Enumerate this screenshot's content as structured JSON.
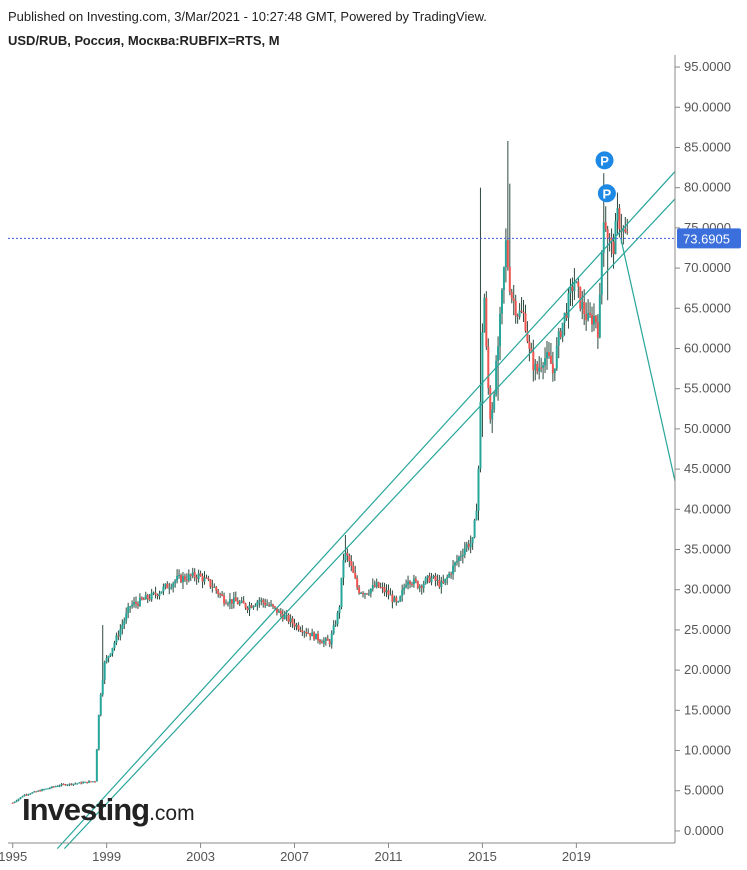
{
  "header": {
    "published": "Published on Investing.com, 3/Mar/2021 - 10:27:48 GMT, Powered by TradingView.",
    "title": "USD/RUB, Россия, Москва:RUBFIX=RTS, M"
  },
  "logo": {
    "brand": "Investing",
    "suffix": ".com"
  },
  "colors": {
    "up": "#26a69a",
    "down": "#ef5350",
    "wick": "#2d4a3e",
    "trendline": "#26a69a",
    "price_line": "#3b5bdb",
    "price_tag": "#3b6fdc",
    "marker": "#1e88e5",
    "axis": "#888888"
  },
  "chart_data": {
    "type": "candlestick",
    "title": "USD/RUB, Россия, Москва:RUBFIX=RTS, M",
    "interval": "Monthly",
    "xlabel": "",
    "ylabel": "",
    "ylim": [
      -1.5,
      96.5
    ],
    "xlim": [
      1994.8,
      2023.2
    ],
    "y_ticks": [
      "95.0000",
      "90.0000",
      "85.0000",
      "80.0000",
      "75.0000",
      "70.0000",
      "65.0000",
      "60.0000",
      "55.0000",
      "50.0000",
      "45.0000",
      "40.0000",
      "35.0000",
      "30.0000",
      "25.0000",
      "20.0000",
      "15.0000",
      "10.0000",
      "5.0000",
      "0.0000"
    ],
    "y_tick_values": [
      95,
      90,
      85,
      80,
      75,
      70,
      65,
      60,
      55,
      50,
      45,
      40,
      35,
      30,
      25,
      20,
      15,
      10,
      5,
      0
    ],
    "x_ticks": [
      "1995",
      "1999",
      "2003",
      "2007",
      "2011",
      "2015",
      "2019"
    ],
    "x_tick_values": [
      1995,
      1999,
      2003,
      2007,
      2011,
      2015,
      2019
    ],
    "last_price": 73.6905,
    "last_price_label": "73.6905",
    "markers": [
      {
        "label": "P",
        "x": 2020.2,
        "y": 83.4
      },
      {
        "label": "P",
        "x": 2020.3,
        "y": 79.3
      }
    ],
    "trendlines": [
      {
        "x": [
          1996.9,
          2023.2
        ],
        "y": [
          -2.2,
          82.0
        ]
      },
      {
        "x": [
          1997.2,
          2023.2
        ],
        "y": [
          -2.2,
          78.6
        ]
      },
      {
        "x": [
          2020.9,
          2023.2
        ],
        "y": [
          73.6,
          43.5
        ]
      }
    ],
    "anchors": [
      [
        1995.0,
        3.5
      ],
      [
        1995.5,
        4.5
      ],
      [
        1996.0,
        4.9
      ],
      [
        1997.0,
        5.7
      ],
      [
        1998.0,
        6.0
      ],
      [
        1998.5,
        6.2
      ],
      [
        1998.7,
        16.0
      ],
      [
        1998.9,
        20.7
      ],
      [
        1999.5,
        24.5
      ],
      [
        2000.0,
        28.0
      ],
      [
        2001.0,
        29.3
      ],
      [
        2002.0,
        31.3
      ],
      [
        2002.9,
        31.8
      ],
      [
        2003.5,
        30.5
      ],
      [
        2004.0,
        28.8
      ],
      [
        2004.5,
        28.5
      ],
      [
        2005.0,
        27.9
      ],
      [
        2005.5,
        28.7
      ],
      [
        2006.0,
        27.9
      ],
      [
        2007.0,
        25.7
      ],
      [
        2007.8,
        24.3
      ],
      [
        2008.2,
        23.6
      ],
      [
        2008.5,
        23.5
      ],
      [
        2008.9,
        27.5
      ],
      [
        2009.1,
        34.5
      ],
      [
        2009.3,
        33.8
      ],
      [
        2009.7,
        30.0
      ],
      [
        2010.0,
        29.7
      ],
      [
        2010.5,
        30.5
      ],
      [
        2011.0,
        29.5
      ],
      [
        2011.4,
        28.0
      ],
      [
        2011.8,
        31.5
      ],
      [
        2012.3,
        30.5
      ],
      [
        2012.8,
        31.5
      ],
      [
        2013.3,
        30.5
      ],
      [
        2013.8,
        33.0
      ],
      [
        2014.3,
        35.5
      ],
      [
        2014.6,
        36.0
      ],
      [
        2014.8,
        42.0
      ],
      [
        2014.95,
        56.0
      ],
      [
        2015.05,
        69.0
      ],
      [
        2015.2,
        57.0
      ],
      [
        2015.35,
        51.0
      ],
      [
        2015.6,
        58.0
      ],
      [
        2015.8,
        65.0
      ],
      [
        2016.0,
        73.0
      ],
      [
        2016.2,
        67.0
      ],
      [
        2016.5,
        64.5
      ],
      [
        2016.8,
        64.0
      ],
      [
        2017.0,
        59.5
      ],
      [
        2017.3,
        57.0
      ],
      [
        2017.6,
        59.0
      ],
      [
        2017.9,
        58.3
      ],
      [
        2018.0,
        57.0
      ],
      [
        2018.3,
        62.0
      ],
      [
        2018.6,
        65.0
      ],
      [
        2018.9,
        68.5
      ],
      [
        2019.2,
        65.5
      ],
      [
        2019.5,
        63.5
      ],
      [
        2019.8,
        64.0
      ],
      [
        2019.95,
        62.0
      ],
      [
        2020.15,
        77.0
      ],
      [
        2020.35,
        74.0
      ],
      [
        2020.55,
        72.0
      ],
      [
        2020.75,
        76.5
      ],
      [
        2021.0,
        74.5
      ],
      [
        2021.17,
        73.69
      ]
    ],
    "spikes": [
      {
        "x": 2014.9,
        "high": 80.0
      },
      {
        "x": 2015.0,
        "low": 55.0
      },
      {
        "x": 2015.4,
        "low": 49.5
      },
      {
        "x": 2015.7,
        "low": 53.5
      },
      {
        "x": 2016.05,
        "high": 85.8
      },
      {
        "x": 2016.15,
        "high": 80.5
      },
      {
        "x": 2020.2,
        "high": 81.8
      },
      {
        "x": 2020.35,
        "low": 66.0
      },
      {
        "x": 2018.9,
        "high": 70.0
      },
      {
        "x": 2009.15,
        "high": 36.8
      },
      {
        "x": 1998.85,
        "high": 25.6
      },
      {
        "x": 2014.97,
        "low": 49.0
      }
    ]
  }
}
